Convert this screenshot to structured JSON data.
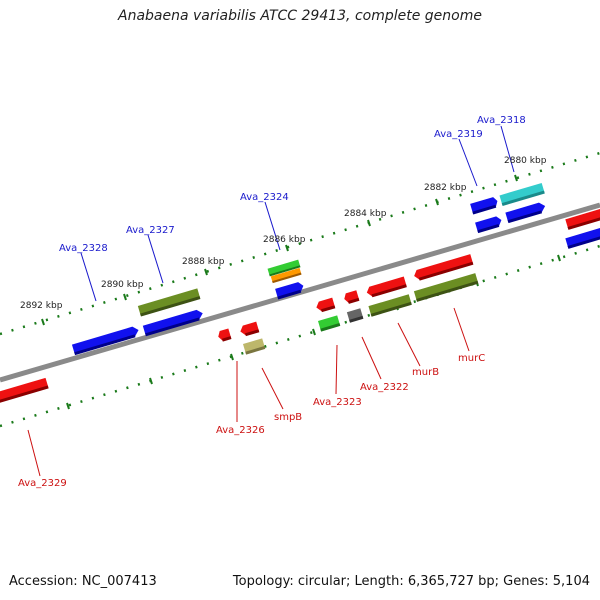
{
  "title": "Anabaena variabilis ATCC 29413, complete genome",
  "footer": {
    "accession": "Accession: NC_007413",
    "summary": "Topology: circular; Length: 6,365,727 bp; Genes: 5,104"
  },
  "colors": {
    "backbone": "#777777",
    "ticks": "#1a7a1a",
    "label_top": "#1a1acc",
    "label_bottom": "#cc1111"
  },
  "kbp_labels": [
    "2880 kbp",
    "2882 kbp",
    "2884 kbp",
    "2886 kbp",
    "2888 kbp",
    "2890 kbp",
    "2892 kbp"
  ],
  "gene_labels_top": [
    "Ava_2318",
    "Ava_2319",
    "Ava_2324",
    "Ava_2327",
    "Ava_2328"
  ],
  "gene_labels_bottom": [
    "Ava_2329",
    "Ava_2326",
    "smpB",
    "Ava_2323",
    "Ava_2322",
    "murB",
    "murC"
  ]
}
